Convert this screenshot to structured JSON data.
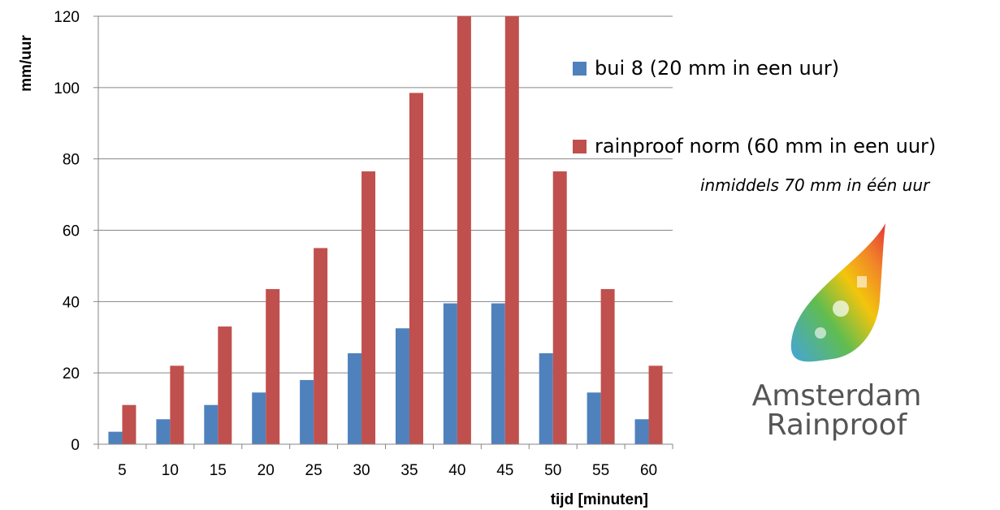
{
  "chart_data": {
    "type": "bar",
    "title": "",
    "xlabel": "tijd  [minuten]",
    "ylabel": "mm/uur",
    "ylim": [
      0,
      120
    ],
    "yticks": [
      "0",
      "20",
      "40",
      "60",
      "80",
      "100",
      "120"
    ],
    "categories": [
      "5",
      "10",
      "15",
      "20",
      "25",
      "30",
      "35",
      "40",
      "45",
      "50",
      "55",
      "60"
    ],
    "series": [
      {
        "name": "bui 8  (20 mm in een uur)",
        "color": "#4F81BD",
        "values": [
          3.5,
          7,
          11,
          14.5,
          18,
          25.5,
          32.5,
          39.5,
          39.5,
          25.5,
          14.5,
          7
        ]
      },
      {
        "name": "rainproof norm  (60 mm in een uur)",
        "color": "#C0504D",
        "values": [
          11,
          22,
          33,
          43.5,
          55,
          76.5,
          98.5,
          120,
          120,
          76.5,
          43.5,
          22
        ]
      }
    ],
    "grid": true,
    "legend_position": "right"
  },
  "annotation": "inmiddels 70 mm in één uur",
  "logo": {
    "line1": "Amsterdam",
    "line2": "Rainproof"
  }
}
